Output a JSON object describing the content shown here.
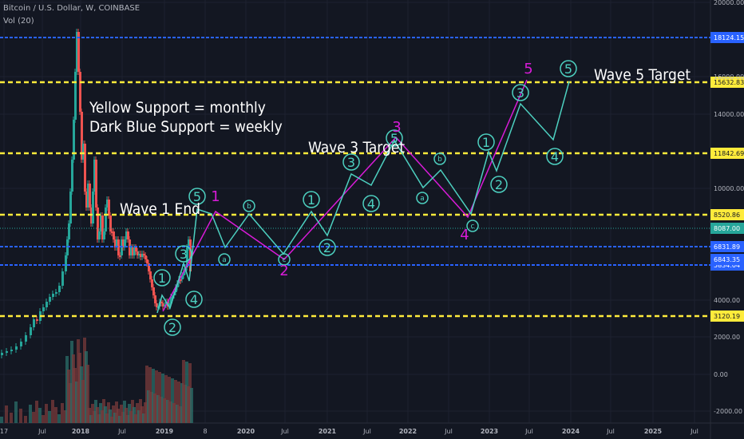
{
  "header": {
    "symbol": "Bitcoin / U.S. Dollar, W, COINBASE",
    "volume": "Vol (20)"
  },
  "annotations": {
    "yellow_support": "Yellow Support = monthly",
    "blue_support": "Dark Blue Support = weekly",
    "wave1_end": "Wave 1 End",
    "wave3_target": "Wave 3 Target",
    "wave5_target": "Wave 5 Target"
  },
  "colors": {
    "background": "#131722",
    "yellow": "#ffeb3b",
    "blue": "#2962ff",
    "cyan": "#4dd0c0",
    "magenta": "#d81bd8",
    "green_candle": "#26a69a",
    "red_candle": "#ef5350"
  },
  "chart_data": {
    "type": "line",
    "y_scale": "log",
    "ylim": [
      -2000,
      20000
    ],
    "y_ticks": [
      "20000.00",
      "16000.00",
      "14000.00",
      "10000.00",
      "4000.00",
      "2000.00",
      "0.00",
      "-2000.00"
    ],
    "x_ticks": [
      "17",
      "Jul",
      "2018",
      "Jul",
      "2019",
      "8",
      "2020",
      "Jul",
      "2021",
      "Jul",
      "2022",
      "Jul",
      "2023",
      "Jul",
      "2024",
      "Jul",
      "2025",
      "Jul"
    ],
    "support_lines": [
      {
        "label": "18124.15",
        "color": "blue"
      },
      {
        "label": "15632.83",
        "color": "yellow"
      },
      {
        "label": "11842.69",
        "color": "yellow"
      },
      {
        "label": "8520.86",
        "color": "yellow"
      },
      {
        "label": "6831.89",
        "color": "blue"
      },
      {
        "label": "5834.04",
        "color": "blue"
      },
      {
        "label": "3120.19",
        "color": "yellow"
      }
    ],
    "price_tags": [
      {
        "label": "8087.00",
        "color": "green"
      },
      {
        "label": "6843.35",
        "color": "blue"
      }
    ],
    "wave_labels": [
      "1",
      "2",
      "3",
      "4",
      "5",
      "a",
      "b",
      "c",
      "1",
      "2",
      "3",
      "4",
      "5",
      "a",
      "b",
      "c",
      "1",
      "2",
      "3",
      "4",
      "5"
    ],
    "major_wave_labels": [
      "1",
      "2",
      "3",
      "4",
      "5"
    ],
    "grid": true
  }
}
